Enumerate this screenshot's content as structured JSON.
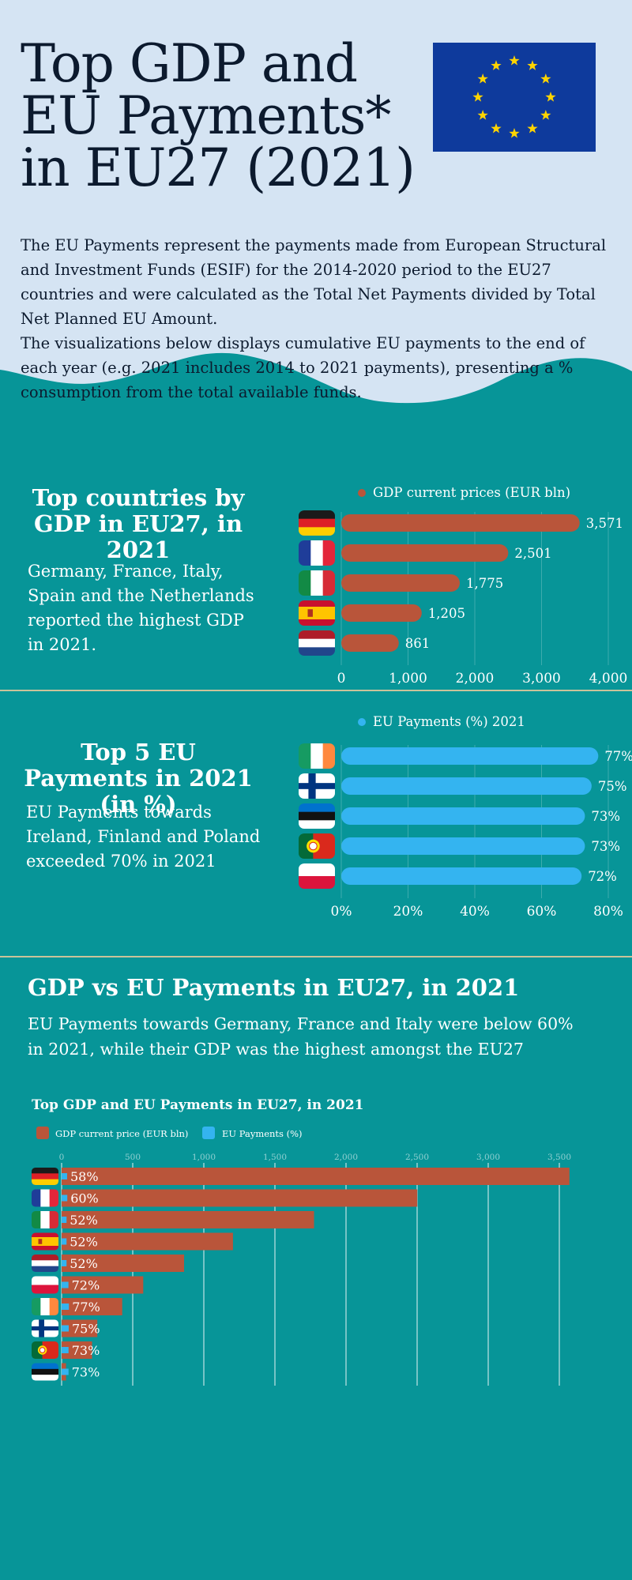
{
  "header": {
    "title_lines": [
      "Top GDP and",
      "EU Payments*",
      "in EU27 (2021)"
    ],
    "intro_paragraphs": [
      "The EU Payments represent the payments made from European Structural and Investment Funds (ESIF) for the 2014-2020 period to the EU27 countries and were calculated as the Total Net Payments divided by Total Net Planned EU Amount.",
      "The visualizations below displays cumulative EU payments to the end of each year (e.g. 2021 includes 2014 to 2021 payments), presenting a % consumption from the total available funds."
    ]
  },
  "section1": {
    "title": "Top countries by GDP in EU27, in 2021",
    "text": "Germany, France, Italy, Spain and the Netherlands reported the highest GDP in 2021."
  },
  "section2": {
    "title": "Top 5 EU Payments in 2021 (in %)",
    "text": "EU Payments towards Ireland, Finland and Poland exceeded 70% in 2021"
  },
  "section3": {
    "title": "GDP vs EU Payments in EU27, in 2021",
    "text": "EU Payments towards Germany, France and Italy were below 60% in 2021, while their GDP was the highest amongst the EU27"
  },
  "colors": {
    "background": "#079598",
    "header_bg": "#d5e4f3",
    "title_text": "#0c1a2e",
    "gdp_bar": "#b9553a",
    "payments_bar": "#34b4f0",
    "divider": "#c9c39a",
    "eu_blue": "#0e3a9c",
    "eu_star": "#ffd400"
  },
  "chart_data": [
    {
      "type": "bar",
      "orientation": "horizontal",
      "legend": "top",
      "series": [
        {
          "name": "GDP current prices (EUR bln)",
          "values": [
            3571,
            2501,
            1775,
            1205,
            861
          ]
        }
      ],
      "categories": [
        "Germany",
        "France",
        "Italy",
        "Spain",
        "Netherlands"
      ],
      "flags": [
        "flag-germany",
        "flag-france",
        "flag-italy",
        "flag-spain",
        "flag-netherlands"
      ],
      "data_labels": [
        "3,571",
        "2,501",
        "1,775",
        "1,205",
        "861"
      ],
      "xlim": [
        0,
        4000
      ],
      "xticks": [
        0,
        1000,
        2000,
        3000,
        4000
      ],
      "xtick_labels": [
        "0",
        "1,000",
        "2,000",
        "3,000",
        "4,000"
      ],
      "grid": true
    },
    {
      "type": "bar",
      "orientation": "horizontal",
      "legend": "top",
      "series": [
        {
          "name": "EU Payments (%) 2021",
          "values": [
            77,
            75,
            73,
            73,
            72
          ]
        }
      ],
      "categories": [
        "Ireland",
        "Finland",
        "Estonia",
        "Portugal",
        "Poland"
      ],
      "flags": [
        "flag-ireland",
        "flag-finland",
        "flag-estonia",
        "flag-portugal",
        "flag-poland"
      ],
      "data_labels": [
        "77%",
        "75%",
        "73%",
        "73%",
        "72%"
      ],
      "xlim": [
        0,
        80
      ],
      "xticks": [
        0,
        20,
        40,
        60,
        80
      ],
      "xtick_labels": [
        "0%",
        "20%",
        "40%",
        "60%",
        "80%"
      ],
      "grid": true
    },
    {
      "type": "bar",
      "orientation": "horizontal",
      "title": "Top GDP and EU Payments in EU27, in 2021",
      "legend": "top-left",
      "categories": [
        "Germany",
        "France",
        "Italy",
        "Spain",
        "Netherlands",
        "Poland",
        "Ireland",
        "Finland",
        "Portugal",
        "Estonia"
      ],
      "flags": [
        "flag-germany",
        "flag-france",
        "flag-italy",
        "flag-spain",
        "flag-netherlands",
        "flag-poland",
        "flag-ireland",
        "flag-finland",
        "flag-portugal",
        "flag-estonia"
      ],
      "series": [
        {
          "name": "GDP current price (EUR bln)",
          "values": [
            3571,
            2501,
            1775,
            1205,
            861,
            574,
            426,
            251,
            214,
            31
          ]
        },
        {
          "name": "EU Payments (%)",
          "values": [
            58,
            60,
            52,
            52,
            52,
            72,
            77,
            75,
            73,
            73
          ]
        }
      ],
      "data_labels": [
        "58%",
        "60%",
        "52%",
        "52%",
        "52%",
        "72%",
        "77%",
        "75%",
        "73%",
        "73%"
      ],
      "xlim": [
        0,
        3500
      ],
      "xticks": [
        0,
        500,
        1000,
        1500,
        2000,
        2500,
        3000,
        3500
      ],
      "xtick_labels": [
        "0",
        "500",
        "1,000",
        "1,500",
        "2,000",
        "2,500",
        "3,000",
        "3,500"
      ],
      "grid": true
    }
  ]
}
